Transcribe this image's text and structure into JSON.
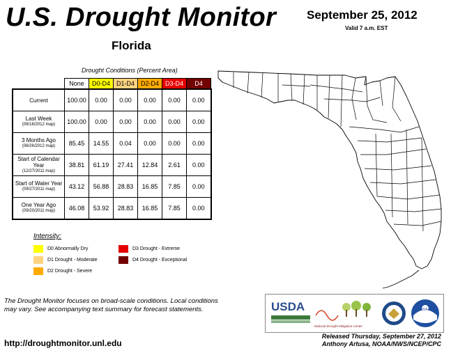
{
  "header": {
    "title": "U.S. Drought Monitor",
    "state": "Florida",
    "date": "September 25, 2012",
    "valid": "Valid 7 a.m. EST"
  },
  "table": {
    "caption": "Drought Conditions (Percent Area)",
    "columns": [
      "None",
      "D0-D4",
      "D1-D4",
      "D2-D4",
      "D3-D4",
      "D4"
    ],
    "column_colors": [
      "#ffffff",
      "#ffff00",
      "#fcd37f",
      "#ffaa00",
      "#e60000",
      "#730000"
    ],
    "rows": [
      {
        "label": "Current",
        "sub": "",
        "values": [
          "100.00",
          "0.00",
          "0.00",
          "0.00",
          "0.00",
          "0.00"
        ]
      },
      {
        "label": "Last Week",
        "sub": "(09/18/2012 map)",
        "values": [
          "100.00",
          "0.00",
          "0.00",
          "0.00",
          "0.00",
          "0.00"
        ]
      },
      {
        "label": "3 Months Ago",
        "sub": "(06/26/2012 map)",
        "values": [
          "85.45",
          "14.55",
          "0.04",
          "0.00",
          "0.00",
          "0.00"
        ]
      },
      {
        "label": "Start of Calendar Year",
        "sub": "(12/27/2011 map)",
        "values": [
          "38.81",
          "61.19",
          "27.41",
          "12.84",
          "2.61",
          "0.00"
        ]
      },
      {
        "label": "Start of Water Year",
        "sub": "(09/27/2011 map)",
        "values": [
          "43.12",
          "56.88",
          "28.83",
          "16.85",
          "7.85",
          "0.00"
        ]
      },
      {
        "label": "One Year Ago",
        "sub": "(09/20/2011 map)",
        "values": [
          "46.08",
          "53.92",
          "28.83",
          "16.85",
          "7.85",
          "0.00"
        ]
      }
    ]
  },
  "legend": {
    "title": "Intensity:",
    "items": [
      {
        "label": "D0 Abnormally Dry",
        "color": "#ffff00"
      },
      {
        "label": "D1 Drought - Moderate",
        "color": "#fcd37f"
      },
      {
        "label": "D2 Drought - Severe",
        "color": "#ffaa00"
      },
      {
        "label": "D3 Drought - Extreme",
        "color": "#e60000"
      },
      {
        "label": "D4 Drought - Exceptional",
        "color": "#730000"
      }
    ]
  },
  "footer": {
    "note": "The Drought Monitor focuses on broad-scale conditions. Local conditions may vary. See accompanying text summary for forecast statements.",
    "url": "http://droughtmonitor.unl.edu",
    "released": "Released Thursday, September 27, 2012",
    "author": "Anthony Artusa, NOAA/NWS/NCEP/CPC"
  },
  "logos": {
    "usda": "USDA",
    "ndmc": "National Drought Mitigation Center",
    "doc": "doc-seal-icon",
    "noaa": "NOAA"
  }
}
